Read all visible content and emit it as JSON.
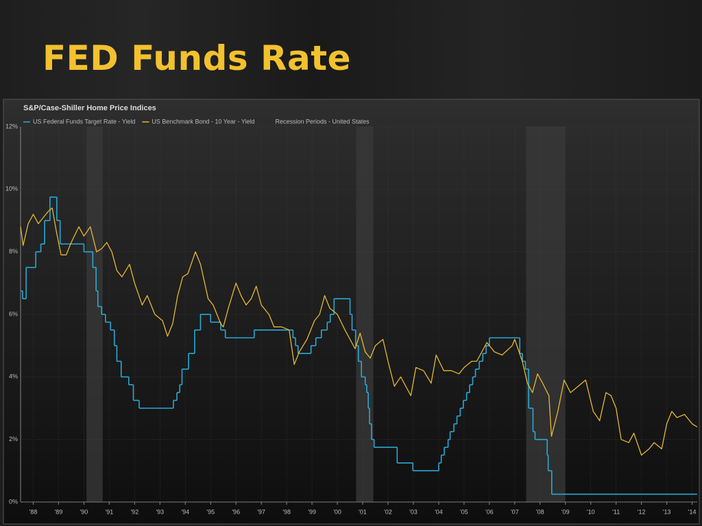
{
  "slide_title": "FED Funds Rate",
  "chart_data": {
    "type": "line",
    "title": "S&P/Case-Shiller Home Price Indices",
    "xlim": [
      1988.0,
      2014.7
    ],
    "xticks": [
      {
        "value": 1988.5,
        "label": "'88"
      },
      {
        "value": 1989.5,
        "label": "'89"
      },
      {
        "value": 1990.5,
        "label": "'90"
      },
      {
        "value": 1991.5,
        "label": "'91"
      },
      {
        "value": 1992.5,
        "label": "'92"
      },
      {
        "value": 1993.5,
        "label": "'93"
      },
      {
        "value": 1994.5,
        "label": "'94"
      },
      {
        "value": 1995.5,
        "label": "'95"
      },
      {
        "value": 1996.5,
        "label": "'96"
      },
      {
        "value": 1997.5,
        "label": "'97"
      },
      {
        "value": 1998.5,
        "label": "'98"
      },
      {
        "value": 1999.5,
        "label": "'99"
      },
      {
        "value": 2000.5,
        "label": "'00"
      },
      {
        "value": 2001.5,
        "label": "'01"
      },
      {
        "value": 2002.5,
        "label": "'02"
      },
      {
        "value": 2003.5,
        "label": "'03"
      },
      {
        "value": 2004.5,
        "label": "'04"
      },
      {
        "value": 2005.5,
        "label": "'05"
      },
      {
        "value": 2006.5,
        "label": "'06"
      },
      {
        "value": 2007.5,
        "label": "'07"
      },
      {
        "value": 2008.5,
        "label": "'08"
      },
      {
        "value": 2009.5,
        "label": "'09"
      },
      {
        "value": 2010.5,
        "label": "'10"
      },
      {
        "value": 2011.5,
        "label": "'11"
      },
      {
        "value": 2012.5,
        "label": "'12"
      },
      {
        "value": 2013.5,
        "label": "'13"
      },
      {
        "value": 2014.5,
        "label": "'14"
      }
    ],
    "ylim": [
      0,
      12
    ],
    "yticks": [
      {
        "value": 0,
        "label": "0%"
      },
      {
        "value": 2,
        "label": "2%"
      },
      {
        "value": 4,
        "label": "4%"
      },
      {
        "value": 6,
        "label": "6%"
      },
      {
        "value": 8,
        "label": "8%"
      },
      {
        "value": 10,
        "label": "10%"
      },
      {
        "value": 12,
        "label": "12%"
      }
    ],
    "grid": true,
    "series": [
      {
        "name": "US Federal Funds Target Rate - Yield",
        "color": "#29a9d6",
        "step": true,
        "x": [
          1988.0,
          1988.08,
          1988.22,
          1988.6,
          1988.8,
          1988.95,
          1989.16,
          1989.43,
          1989.56,
          1990.5,
          1990.85,
          1990.98,
          1991.05,
          1991.2,
          1991.35,
          1991.55,
          1991.7,
          1991.8,
          1991.97,
          1992.27,
          1992.45,
          1992.68,
          1994.03,
          1994.17,
          1994.28,
          1994.37,
          1994.63,
          1994.87,
          1995.1,
          1995.5,
          1995.9,
          1996.08,
          1997.22,
          1998.75,
          1998.85,
          1998.95,
          1999.46,
          1999.65,
          1999.87,
          2000.1,
          2000.22,
          2000.37,
          2001.0,
          2001.08,
          2001.22,
          2001.33,
          2001.45,
          2001.6,
          2001.66,
          2001.72,
          2001.77,
          2001.85,
          2001.95,
          2002.86,
          2003.48,
          2004.5,
          2004.6,
          2004.72,
          2004.87,
          2004.95,
          2005.1,
          2005.22,
          2005.35,
          2005.47,
          2005.6,
          2005.72,
          2005.84,
          2005.95,
          2006.1,
          2006.24,
          2006.37,
          2006.5,
          2007.7,
          2007.8,
          2007.92,
          2008.05,
          2008.22,
          2008.3,
          2008.78,
          2008.82,
          2008.96
        ],
        "values": [
          6.75,
          6.5,
          7.5,
          8.0,
          8.25,
          9.0,
          9.75,
          9.0,
          8.25,
          8.0,
          7.5,
          6.75,
          6.25,
          6.0,
          5.75,
          5.5,
          5.0,
          4.5,
          4.0,
          3.75,
          3.25,
          3.0,
          3.25,
          3.5,
          3.75,
          4.25,
          4.75,
          5.5,
          6.0,
          5.75,
          5.5,
          5.25,
          5.5,
          5.25,
          5.0,
          4.75,
          5.0,
          5.25,
          5.5,
          5.75,
          6.0,
          6.5,
          6.0,
          5.5,
          5.0,
          4.5,
          4.0,
          3.75,
          3.5,
          3.0,
          2.5,
          2.0,
          1.75,
          1.25,
          1.0,
          1.25,
          1.5,
          1.75,
          2.0,
          2.25,
          2.5,
          2.75,
          3.0,
          3.25,
          3.5,
          3.75,
          4.0,
          4.25,
          4.5,
          4.75,
          5.0,
          5.25,
          4.75,
          4.5,
          4.25,
          3.0,
          2.25,
          2.0,
          1.5,
          1.0,
          0.25
        ]
      },
      {
        "name": "US Benchmark Bond - 10 Year - Yield",
        "color": "#e8b830",
        "x": [
          1988.0,
          1988.1,
          1988.3,
          1988.5,
          1988.7,
          1988.9,
          1989.1,
          1989.25,
          1989.4,
          1989.6,
          1989.8,
          1990.0,
          1990.3,
          1990.5,
          1990.75,
          1991.0,
          1991.2,
          1991.4,
          1991.6,
          1991.8,
          1992.0,
          1992.3,
          1992.5,
          1992.8,
          1993.0,
          1993.3,
          1993.6,
          1993.8,
          1994.0,
          1994.2,
          1994.4,
          1994.6,
          1994.9,
          1995.1,
          1995.4,
          1995.6,
          1995.9,
          1996.0,
          1996.2,
          1996.5,
          1996.7,
          1996.9,
          1997.1,
          1997.3,
          1997.5,
          1997.8,
          1998.0,
          1998.3,
          1998.6,
          1998.8,
          1999.0,
          1999.3,
          1999.6,
          1999.8,
          2000.0,
          2000.2,
          2000.5,
          2000.8,
          2001.0,
          2001.2,
          2001.4,
          2001.6,
          2001.8,
          2002.0,
          2002.3,
          2002.5,
          2002.75,
          2003.0,
          2003.4,
          2003.6,
          2003.9,
          2004.2,
          2004.4,
          2004.7,
          2005.0,
          2005.3,
          2005.5,
          2005.8,
          2006.0,
          2006.4,
          2006.7,
          2007.0,
          2007.4,
          2007.5,
          2007.8,
          2008.0,
          2008.2,
          2008.4,
          2008.6,
          2008.85,
          2008.95,
          2009.2,
          2009.45,
          2009.7,
          2010.0,
          2010.3,
          2010.6,
          2010.85,
          2011.1,
          2011.3,
          2011.5,
          2011.7,
          2012.0,
          2012.2,
          2012.5,
          2012.8,
          2013.0,
          2013.3,
          2013.5,
          2013.7,
          2013.9,
          2014.2,
          2014.5,
          2014.7
        ],
        "values": [
          8.8,
          8.2,
          8.9,
          9.2,
          8.9,
          9.1,
          9.3,
          9.4,
          8.7,
          7.9,
          7.9,
          8.3,
          8.8,
          8.5,
          8.8,
          8.0,
          8.1,
          8.3,
          8.0,
          7.4,
          7.2,
          7.6,
          7.0,
          6.3,
          6.6,
          6.0,
          5.8,
          5.3,
          5.7,
          6.6,
          7.2,
          7.3,
          8.0,
          7.6,
          6.5,
          6.3,
          5.7,
          5.6,
          6.2,
          7.0,
          6.6,
          6.3,
          6.5,
          6.9,
          6.3,
          6.0,
          5.6,
          5.6,
          5.5,
          4.4,
          4.8,
          5.2,
          5.8,
          6.0,
          6.6,
          6.2,
          6.0,
          5.5,
          5.2,
          4.9,
          5.4,
          4.8,
          4.6,
          5.0,
          5.2,
          4.5,
          3.7,
          4.0,
          3.4,
          4.3,
          4.2,
          3.8,
          4.7,
          4.2,
          4.2,
          4.1,
          4.3,
          4.5,
          4.5,
          5.1,
          4.8,
          4.7,
          5.0,
          5.2,
          4.5,
          3.8,
          3.5,
          4.1,
          3.8,
          3.4,
          2.1,
          2.9,
          3.9,
          3.5,
          3.7,
          3.9,
          2.9,
          2.6,
          3.5,
          3.4,
          3.0,
          2.0,
          1.9,
          2.2,
          1.5,
          1.7,
          1.9,
          1.7,
          2.5,
          2.9,
          2.7,
          2.8,
          2.5,
          2.4
        ]
      },
      {
        "name": "Recession Periods - United States",
        "color": "#3a3a3a",
        "periods": [
          [
            1990.6,
            1991.24
          ],
          [
            2001.24,
            2001.92
          ],
          [
            2007.95,
            2009.49
          ]
        ]
      }
    ]
  }
}
